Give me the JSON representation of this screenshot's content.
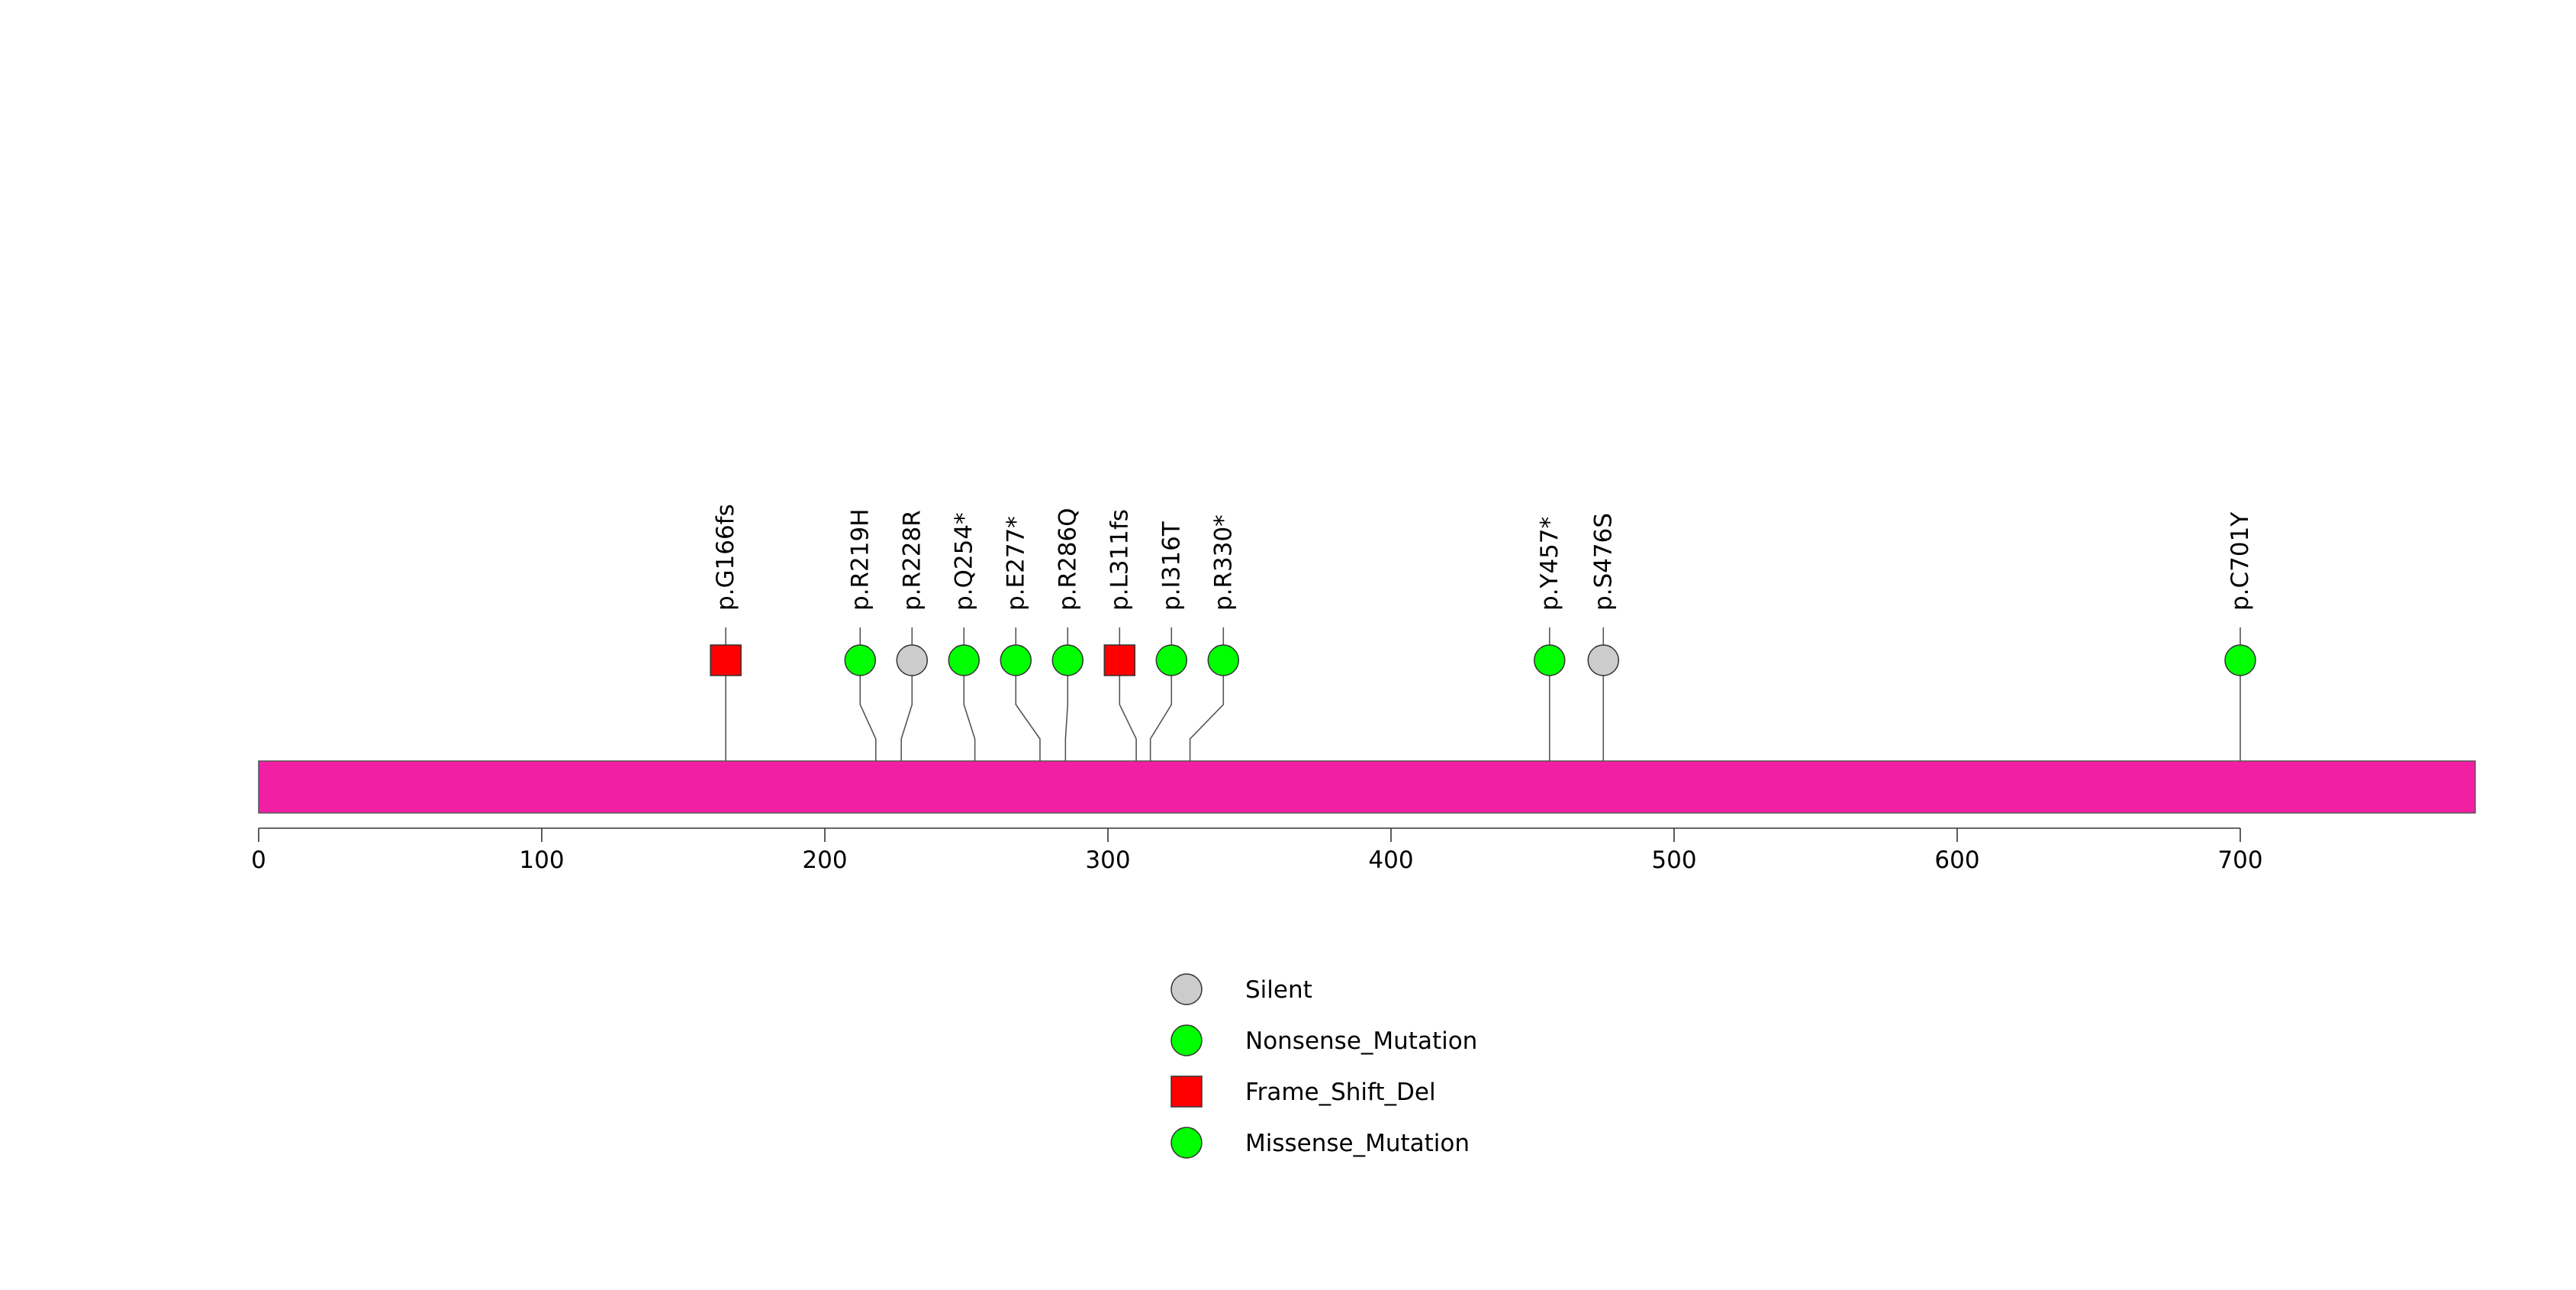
{
  "chart_data": {
    "type": "lollipop",
    "title": "",
    "protein_length": 783,
    "x_axis": {
      "range": [
        0,
        783
      ],
      "ticks": [
        0,
        100,
        200,
        300,
        400,
        500,
        600,
        700
      ],
      "tick_labels": [
        "0",
        "100",
        "200",
        "300",
        "400",
        "500",
        "600",
        "700"
      ]
    },
    "protein_bar_color": "#F21FA5",
    "mutations": [
      {
        "label": "p.G166fs",
        "position": 165,
        "type": "Frame_Shift_Del"
      },
      {
        "label": "p.R219H",
        "position": 218,
        "type": "Missense_Mutation"
      },
      {
        "label": "p.R228R",
        "position": 227,
        "type": "Silent"
      },
      {
        "label": "p.Q254*",
        "position": 253,
        "type": "Nonsense_Mutation"
      },
      {
        "label": "p.E277*",
        "position": 276,
        "type": "Nonsense_Mutation"
      },
      {
        "label": "p.R286Q",
        "position": 285,
        "type": "Missense_Mutation"
      },
      {
        "label": "p.L311fs",
        "position": 310,
        "type": "Frame_Shift_Del"
      },
      {
        "label": "p.I316T",
        "position": 315,
        "type": "Missense_Mutation"
      },
      {
        "label": "p.R330*",
        "position": 329,
        "type": "Nonsense_Mutation"
      },
      {
        "label": "p.Y457*",
        "position": 456,
        "type": "Nonsense_Mutation"
      },
      {
        "label": "p.S476S",
        "position": 475,
        "type": "Silent"
      },
      {
        "label": "p.C701Y",
        "position": 700,
        "type": "Missense_Mutation"
      }
    ],
    "legend": [
      {
        "label": "Silent",
        "shape": "circle",
        "color": "#CCCCCC"
      },
      {
        "label": "Nonsense_Mutation",
        "shape": "circle",
        "color": "#00FF00"
      },
      {
        "label": "Frame_Shift_Del",
        "shape": "square",
        "color": "#FF0000"
      },
      {
        "label": "Missense_Mutation",
        "shape": "circle",
        "color": "#00FF00"
      }
    ]
  }
}
